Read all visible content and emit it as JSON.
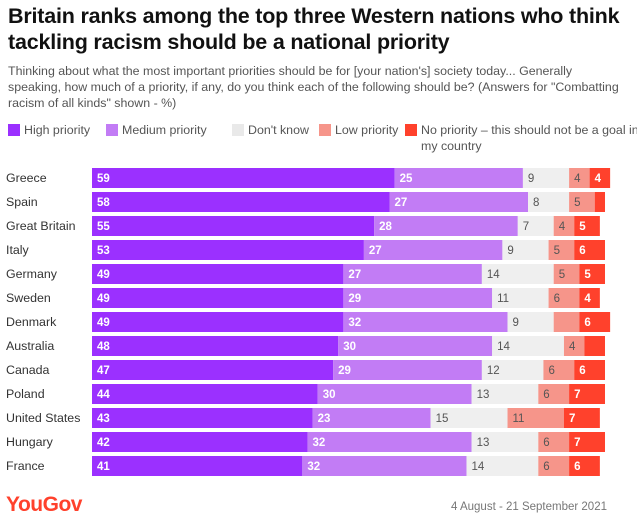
{
  "title": "Britain ranks among the top three Western nations who think tackling racism should be a national priority",
  "subtitle": "Thinking about what the most important priorities should be for [your nation's] society today... Generally speaking, how much of a priority, if any, do you think each of the following should be? (Answers for \"Combatting racism of all kinds\" shown - %)",
  "legend": [
    {
      "label": "High priority",
      "color": "#9b30ff"
    },
    {
      "label": "Medium priority",
      "color": "#c27cf5"
    },
    {
      "label": "Don't know",
      "color": "#efefef"
    },
    {
      "label": "Low priority",
      "color": "#f6958a"
    },
    {
      "label": "No priority – this should not be a goal in my country",
      "color": "#ff412c"
    }
  ],
  "chart_data": {
    "type": "bar",
    "orientation": "horizontal",
    "stacked": true,
    "unit": "%",
    "categories": [
      "Greece",
      "Spain",
      "Great Britain",
      "Italy",
      "Germany",
      "Sweden",
      "Denmark",
      "Australia",
      "Canada",
      "Poland",
      "United States",
      "Hungary",
      "France"
    ],
    "series": [
      {
        "name": "High priority",
        "color": "#9b30ff",
        "label_color": "#ffffff",
        "values": [
          59,
          58,
          55,
          53,
          49,
          49,
          49,
          48,
          47,
          44,
          43,
          42,
          41
        ],
        "labels": [
          "59",
          "58",
          "55",
          "53",
          "49",
          "49",
          "49",
          "48",
          "47",
          "44",
          "43",
          "42",
          "41"
        ]
      },
      {
        "name": "Medium priority",
        "color": "#c27cf5",
        "label_color": "#ffffff",
        "values": [
          25,
          27,
          28,
          27,
          27,
          29,
          32,
          30,
          29,
          30,
          23,
          32,
          32
        ],
        "labels": [
          "25",
          "27",
          "28",
          "27",
          "27",
          "29",
          "32",
          "30",
          "29",
          "30",
          "23",
          "32",
          "32"
        ]
      },
      {
        "name": "Don't know",
        "color": "#efefef",
        "label_color": "#555555",
        "values": [
          9,
          8,
          7,
          9,
          14,
          11,
          9,
          14,
          12,
          13,
          15,
          13,
          14
        ],
        "labels": [
          "9",
          "8",
          "7",
          "9",
          "14",
          "11",
          "9",
          "14",
          "12",
          "13",
          "15",
          "13",
          "14"
        ]
      },
      {
        "name": "Low priority",
        "color": "#f6958a",
        "label_color": "#555555",
        "values": [
          4,
          5,
          4,
          5,
          5,
          6,
          5,
          4,
          6,
          6,
          11,
          6,
          6
        ],
        "labels": [
          "4",
          "5",
          "4",
          "5",
          "5",
          "6",
          "",
          "4",
          "6",
          "6",
          "11",
          "6",
          "6"
        ]
      },
      {
        "name": "No priority – this should not be a goal in my country",
        "color": "#ff412c",
        "label_color": "#ffffff",
        "values": [
          4,
          2,
          5,
          6,
          5,
          4,
          6,
          4,
          6,
          7,
          7,
          7,
          6
        ],
        "labels": [
          "4",
          "",
          "5",
          "6",
          "5",
          "4",
          "6",
          "",
          "6",
          "7",
          "7",
          "7",
          "6"
        ]
      }
    ],
    "xlim": [
      0,
      100
    ]
  },
  "footer": {
    "brand": "YouGov",
    "date_range": "4 August - 21 September 2021"
  }
}
